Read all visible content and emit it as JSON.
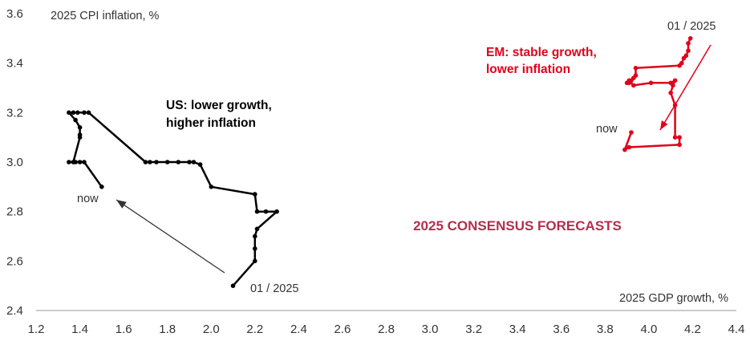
{
  "chart_data": {
    "type": "line",
    "title": "2025 CONSENSUS FORECASTS",
    "xlabel": "2025 GDP growth, %",
    "ylabel": "2025 CPI inflation, %",
    "xlim": [
      1.2,
      4.4
    ],
    "ylim": [
      2.4,
      3.6
    ],
    "x_ticks": [
      "1.2",
      "1.4",
      "1.6",
      "1.8",
      "2.0",
      "2.2",
      "2.4",
      "2.6",
      "2.8",
      "3.0",
      "3.2",
      "3.4",
      "3.6",
      "3.8",
      "4.0",
      "4.2",
      "4.4"
    ],
    "y_ticks": [
      "2.4",
      "2.6",
      "2.8",
      "3.0",
      "3.2",
      "3.4",
      "3.6"
    ],
    "grid": false,
    "colors": {
      "us": "#000000",
      "em": "#e2001a",
      "title": "#b0304d",
      "axis_text": "#333333"
    },
    "series": [
      {
        "key": "us",
        "points": [
          [
            2.1,
            2.5
          ],
          [
            2.2,
            2.6
          ],
          [
            2.2,
            2.65
          ],
          [
            2.2,
            2.7
          ],
          [
            2.21,
            2.73
          ],
          [
            2.3,
            2.8
          ],
          [
            2.25,
            2.8
          ],
          [
            2.21,
            2.8
          ],
          [
            2.2,
            2.87
          ],
          [
            2.0,
            2.9
          ],
          [
            1.95,
            2.99
          ],
          [
            1.92,
            3.0
          ],
          [
            1.9,
            3.0
          ],
          [
            1.85,
            3.0
          ],
          [
            1.8,
            3.0
          ],
          [
            1.75,
            3.0
          ],
          [
            1.72,
            3.0
          ],
          [
            1.7,
            3.0
          ],
          [
            1.44,
            3.2
          ],
          [
            1.42,
            3.2
          ],
          [
            1.39,
            3.2
          ],
          [
            1.37,
            3.2
          ],
          [
            1.35,
            3.2
          ],
          [
            1.38,
            3.17
          ],
          [
            1.4,
            3.14
          ],
          [
            1.4,
            3.11
          ],
          [
            1.4,
            3.1
          ],
          [
            1.37,
            3.0
          ],
          [
            1.35,
            3.0
          ],
          [
            1.38,
            3.0
          ],
          [
            1.4,
            3.0
          ],
          [
            1.42,
            3.0
          ],
          [
            1.5,
            2.9
          ]
        ]
      },
      {
        "key": "em",
        "points": [
          [
            4.19,
            3.5
          ],
          [
            4.18,
            3.48
          ],
          [
            4.18,
            3.45
          ],
          [
            4.17,
            3.43
          ],
          [
            4.16,
            3.42
          ],
          [
            4.15,
            3.4
          ],
          [
            4.14,
            3.39
          ],
          [
            3.94,
            3.38
          ],
          [
            3.94,
            3.35
          ],
          [
            3.93,
            3.34
          ],
          [
            3.92,
            3.33
          ],
          [
            3.91,
            3.32
          ],
          [
            3.9,
            3.32
          ],
          [
            3.91,
            3.33
          ],
          [
            3.93,
            3.31
          ],
          [
            4.01,
            3.32
          ],
          [
            4.1,
            3.32
          ],
          [
            4.12,
            3.33
          ],
          [
            4.11,
            3.31
          ],
          [
            4.1,
            3.28
          ],
          [
            4.12,
            3.23
          ],
          [
            4.12,
            3.1
          ],
          [
            4.14,
            3.1
          ],
          [
            4.14,
            3.07
          ],
          [
            3.91,
            3.06
          ],
          [
            3.89,
            3.05
          ],
          [
            3.92,
            3.12
          ]
        ]
      }
    ],
    "annotations": {
      "us_label": [
        "US: lower growth,",
        "higher inflation"
      ],
      "em_label": [
        "EM: stable growth,",
        "lower inflation"
      ],
      "us_start": "01 / 2025",
      "us_end": "now",
      "em_start": "01 / 2025",
      "em_end": "now"
    }
  }
}
